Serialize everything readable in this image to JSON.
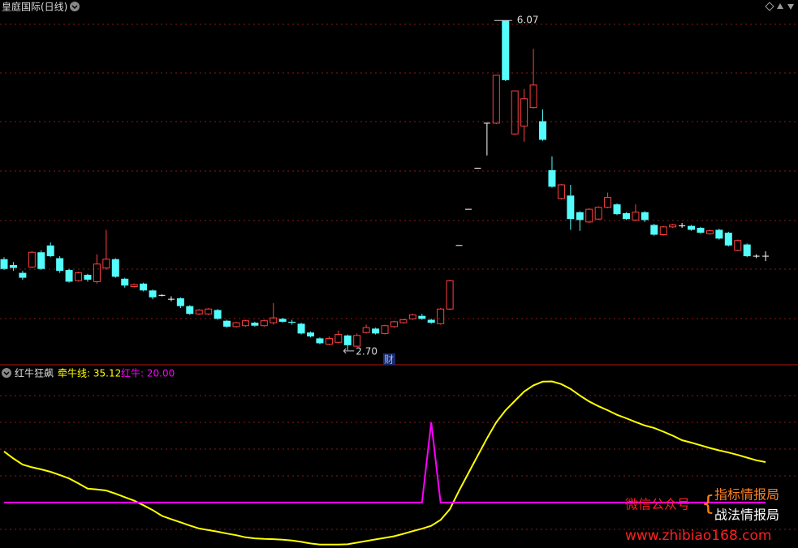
{
  "header": {
    "title": "皇庭国际(日线)"
  },
  "chart_data": [
    {
      "type": "candlestick",
      "categories": [
        null,
        null,
        null,
        null,
        null,
        null,
        null,
        null,
        null,
        null,
        null,
        null,
        null,
        null,
        null,
        null,
        null,
        null,
        null,
        null,
        null,
        null,
        null,
        null,
        null,
        null,
        null,
        null,
        null,
        null,
        null,
        null,
        null,
        null,
        null,
        null,
        null,
        null,
        null,
        null,
        null,
        null,
        null,
        null,
        null,
        null,
        null,
        null,
        null,
        null,
        null,
        null,
        null,
        null,
        null,
        null,
        null,
        null,
        null,
        null,
        null,
        null,
        null,
        null,
        null,
        null,
        null,
        null,
        null,
        null,
        null,
        null,
        null,
        null,
        null,
        null,
        null,
        null,
        null,
        null,
        null,
        null,
        null
      ],
      "open": [
        3.63,
        3.57,
        3.49,
        3.55,
        3.7,
        3.77,
        3.64,
        3.52,
        3.41,
        3.47,
        3.4,
        3.54,
        3.63,
        3.43,
        3.35,
        3.38,
        3.31,
        3.26,
        3.22,
        3.23,
        3.15,
        3.07,
        3.07,
        3.11,
        3.0,
        2.94,
        2.95,
        2.98,
        2.95,
        2.98,
        3.02,
        2.99,
        2.97,
        2.88,
        2.82,
        2.76,
        2.78,
        2.85,
        2.74,
        2.88,
        2.92,
        2.87,
        2.94,
        2.98,
        3.02,
        3.05,
        3.01,
        2.97,
        3.12,
        3.77,
        4.14,
        4.56,
        5.02,
        5.02,
        6.07,
        4.91,
        4.99,
        5.18,
        5.04,
        4.54,
        4.25,
        4.28,
        4.11,
        4.01,
        4.04,
        4.16,
        4.19,
        4.1,
        4.03,
        4.11,
        3.98,
        3.88,
        3.96,
        3.97,
        3.97,
        3.95,
        3.89,
        3.93,
        3.9,
        3.72,
        3.78,
        3.66,
        3.66
      ],
      "high": [
        3.65,
        3.6,
        3.51,
        3.71,
        3.72,
        3.8,
        3.66,
        3.53,
        3.5,
        3.48,
        3.68,
        3.93,
        3.64,
        3.44,
        3.38,
        3.39,
        3.32,
        3.27,
        3.25,
        3.24,
        3.16,
        3.12,
        3.13,
        3.12,
        3.01,
        2.99,
        3.01,
        2.99,
        3.01,
        3.18,
        3.03,
        3.01,
        2.98,
        2.89,
        2.83,
        2.84,
        2.9,
        2.86,
        2.87,
        2.96,
        2.93,
        2.96,
        3.0,
        3.02,
        3.07,
        3.07,
        3.02,
        3.13,
        3.42,
        3.77,
        4.14,
        4.56,
        5.02,
        5.51,
        6.07,
        5.35,
        5.37,
        5.78,
        5.16,
        4.68,
        4.4,
        4.39,
        4.12,
        4.15,
        4.17,
        4.31,
        4.2,
        4.11,
        4.19,
        4.12,
        3.99,
        3.97,
        3.99,
        4.0,
        3.98,
        3.96,
        3.93,
        3.94,
        3.91,
        3.83,
        3.79,
        3.68,
        3.71
      ],
      "low": [
        3.52,
        3.51,
        3.42,
        3.54,
        3.52,
        3.65,
        3.49,
        3.39,
        3.4,
        3.4,
        3.38,
        3.52,
        3.44,
        3.34,
        3.34,
        3.3,
        3.22,
        3.25,
        3.2,
        3.13,
        3.06,
        3.06,
        3.06,
        3.01,
        2.93,
        2.93,
        2.94,
        2.94,
        2.94,
        2.96,
        2.98,
        2.96,
        2.86,
        2.83,
        2.76,
        2.75,
        2.77,
        2.7,
        2.73,
        2.87,
        2.86,
        2.86,
        2.93,
        2.97,
        3.01,
        3.01,
        2.97,
        2.96,
        3.11,
        3.77,
        4.14,
        4.56,
        4.69,
        5.01,
        5.45,
        4.9,
        4.83,
        5.17,
        4.84,
        4.36,
        4.24,
        3.93,
        3.92,
        4.0,
        4.03,
        4.15,
        4.08,
        4.03,
        4.02,
        4.01,
        3.87,
        3.87,
        3.95,
        3.95,
        3.92,
        3.89,
        3.88,
        3.83,
        3.76,
        3.71,
        3.65,
        3.64,
        3.61
      ],
      "close": [
        3.53,
        3.54,
        3.44,
        3.7,
        3.53,
        3.66,
        3.51,
        3.4,
        3.49,
        3.42,
        3.58,
        3.63,
        3.45,
        3.36,
        3.37,
        3.31,
        3.24,
        3.26,
        3.22,
        3.15,
        3.07,
        3.11,
        3.12,
        3.02,
        2.94,
        2.98,
        3.0,
        2.95,
        3.0,
        3.03,
        2.99,
        2.98,
        2.87,
        2.84,
        2.77,
        2.82,
        2.86,
        2.75,
        2.85,
        2.93,
        2.87,
        2.95,
        2.99,
        3.01,
        3.06,
        3.02,
        2.98,
        3.12,
        3.41,
        3.77,
        4.14,
        4.56,
        5.02,
        5.51,
        5.46,
        5.35,
        5.27,
        5.41,
        4.85,
        4.37,
        4.39,
        4.04,
        4.03,
        4.14,
        4.16,
        4.26,
        4.09,
        4.04,
        4.11,
        4.03,
        3.88,
        3.96,
        3.98,
        3.97,
        3.93,
        3.9,
        3.92,
        3.84,
        3.77,
        3.82,
        3.66,
        3.66,
        3.66
      ],
      "up_color": "#ff4040",
      "down_color": "#54fcfc",
      "flat_color": "#ffffff",
      "ylim": [
        2.55,
        6.13
      ],
      "annotations": [
        {
          "value": 6.07,
          "label": "6.07"
        },
        {
          "value": 2.7,
          "label": "2.70"
        }
      ],
      "marker": "财"
    },
    {
      "type": "line",
      "title": "红牛狂飙",
      "legend": [
        "牵牛线: 35.12",
        "红牛: 20.00"
      ],
      "series": [
        {
          "color": "#ffff00",
          "values": [
            39.1,
            36.5,
            34.2,
            33.2,
            32.4,
            31.5,
            30.3,
            29.0,
            27.2,
            25.2,
            24.9,
            24.5,
            23.3,
            22.0,
            20.7,
            19.0,
            17.2,
            15.0,
            13.8,
            12.6,
            11.4,
            10.3,
            9.7,
            9.1,
            8.4,
            7.8,
            7.0,
            6.6,
            6.4,
            6.3,
            6.1,
            5.8,
            5.3,
            4.7,
            4.3,
            4.3,
            4.3,
            4.4,
            5.0,
            5.6,
            6.2,
            6.8,
            7.4,
            8.3,
            9.3,
            10.2,
            11.3,
            13.5,
            17.5,
            24.5,
            31.0,
            37.5,
            44.0,
            50.0,
            54.5,
            58.0,
            61.5,
            63.8,
            65.2,
            65.3,
            64.3,
            62.5,
            60.0,
            57.8,
            56.0,
            54.5,
            52.8,
            51.5,
            50.1,
            48.8,
            47.9,
            46.5,
            45.0,
            43.3,
            42.4,
            41.4,
            40.4,
            39.5,
            38.7,
            37.8,
            36.8,
            35.8,
            35.12
          ]
        },
        {
          "color": "#ff00ff",
          "values": [
            20,
            20,
            20,
            20,
            20,
            20,
            20,
            20,
            20,
            20,
            20,
            20,
            20,
            20,
            20,
            20,
            20,
            20,
            20,
            20,
            20,
            20,
            20,
            20,
            20,
            20,
            20,
            20,
            20,
            20,
            20,
            20,
            20,
            20,
            20,
            20,
            20,
            20,
            20,
            20,
            20,
            20,
            20,
            20,
            20,
            20,
            50,
            20,
            20,
            20,
            20,
            20,
            20,
            20,
            20,
            20,
            20,
            20,
            20,
            20,
            20,
            20,
            20,
            20,
            20,
            20,
            20,
            20,
            20,
            20,
            20,
            20,
            20,
            20,
            20,
            20,
            20,
            20,
            20,
            20,
            20,
            20,
            20
          ]
        }
      ],
      "ylim": [
        3,
        71.5
      ]
    }
  ],
  "watermark": {
    "account": "微信公众号",
    "brace": "{",
    "line1": "指标情报局",
    "line2": "战法情报局",
    "url": "www.zhibiao168.com"
  }
}
